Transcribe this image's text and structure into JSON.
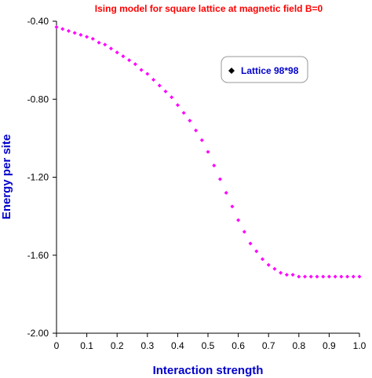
{
  "chart_data": {
    "type": "scatter",
    "title": "Ising model for square lattice at magnetic field B=0",
    "xlabel": "Interaction strength",
    "ylabel": "Energy per site",
    "xlim": [
      0,
      1
    ],
    "ylim": [
      -2.0,
      -0.4
    ],
    "xticks": [
      0,
      0.1,
      0.2,
      0.3,
      0.4,
      0.5,
      0.6,
      0.7,
      0.8,
      0.9,
      1.0
    ],
    "xtick_labels": [
      "0",
      "0.1",
      "0.2",
      "0.3",
      "0.4",
      "0.5",
      "0.6",
      "0.7",
      "0.8",
      "0.9",
      "1.0"
    ],
    "yticks": [
      -0.4,
      -0.8,
      -1.2,
      -1.6,
      -2.0
    ],
    "ytick_labels": [
      "-0.40",
      "-0.80",
      "-1.20",
      "-1.60",
      "-2.00"
    ],
    "grid": false,
    "legend_position": "top-right",
    "series": [
      {
        "name": "Lattice 98*98",
        "marker": "diamond",
        "color": "#FF00FF",
        "x": [
          0.0,
          0.02,
          0.04,
          0.06,
          0.08,
          0.1,
          0.12,
          0.14,
          0.16,
          0.18,
          0.2,
          0.22,
          0.24,
          0.26,
          0.28,
          0.3,
          0.32,
          0.34,
          0.36,
          0.38,
          0.4,
          0.42,
          0.44,
          0.46,
          0.48,
          0.5,
          0.52,
          0.54,
          0.56,
          0.58,
          0.6,
          0.62,
          0.64,
          0.66,
          0.68,
          0.7,
          0.72,
          0.74,
          0.76,
          0.78,
          0.8,
          0.82,
          0.84,
          0.86,
          0.88,
          0.9,
          0.92,
          0.94,
          0.96,
          0.98,
          1.0
        ],
        "y": [
          -0.43,
          -0.44,
          -0.45,
          -0.46,
          -0.47,
          -0.48,
          -0.49,
          -0.51,
          -0.52,
          -0.54,
          -0.56,
          -0.58,
          -0.6,
          -0.62,
          -0.65,
          -0.67,
          -0.7,
          -0.73,
          -0.76,
          -0.79,
          -0.83,
          -0.87,
          -0.91,
          -0.96,
          -1.01,
          -1.07,
          -1.14,
          -1.21,
          -1.28,
          -1.35,
          -1.42,
          -1.48,
          -1.54,
          -1.58,
          -1.62,
          -1.65,
          -1.67,
          -1.69,
          -1.7,
          -1.7,
          -1.71,
          -1.71,
          -1.71,
          -1.71,
          -1.71,
          -1.71,
          -1.71,
          -1.71,
          -1.71,
          -1.71,
          -1.71
        ]
      }
    ]
  },
  "colors": {
    "title": "#FF0000",
    "axis_title": "#0000CC",
    "legend_text": "#0000CC",
    "legend_marker": "#000000",
    "axis": "#000000"
  }
}
